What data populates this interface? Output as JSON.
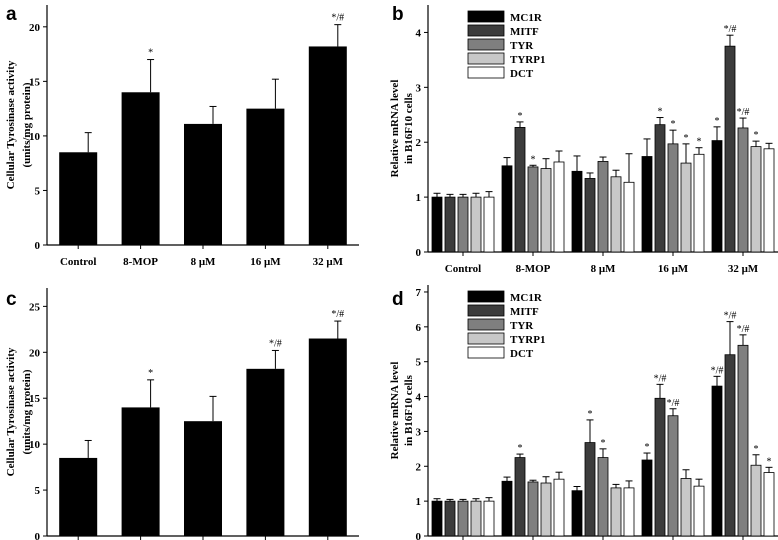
{
  "chart_data": [
    {
      "panel": "a",
      "type": "bar",
      "categories": [
        "Control",
        "8-MOP",
        "8 μM",
        "16 μM",
        "32 μM"
      ],
      "values": [
        8.5,
        14.0,
        11.1,
        12.5,
        18.2
      ],
      "errors": [
        1.8,
        3.0,
        1.6,
        2.7,
        2.0
      ],
      "annotations": [
        "",
        "*",
        "",
        "",
        "*/#"
      ],
      "ylabel": [
        "Cellular Tyrosinase activity",
        "(units/mg protein)"
      ],
      "ylim": [
        0,
        22
      ],
      "yticks": [
        0,
        5,
        10,
        15,
        20
      ]
    },
    {
      "panel": "b",
      "type": "bar",
      "categories": [
        "Control",
        "8-MOP",
        "8 μM",
        "16 μM",
        "32 μM"
      ],
      "ylabel": [
        "Relative mRNA level",
        "in B16F10 cells"
      ],
      "ylim": [
        0,
        4.5
      ],
      "yticks": [
        0,
        1,
        2,
        3,
        4
      ],
      "legend_position": "top-left",
      "series": [
        {
          "name": "MC1R",
          "color": "#000000",
          "values": [
            1.0,
            1.57,
            1.47,
            1.74,
            2.03
          ],
          "errors": [
            0.07,
            0.15,
            0.28,
            0.32,
            0.25
          ],
          "annotations": [
            "",
            "",
            "",
            "",
            "*"
          ]
        },
        {
          "name": "MITF",
          "color": "#3c3c3c",
          "values": [
            1.0,
            2.27,
            1.34,
            2.32,
            3.75
          ],
          "errors": [
            0.05,
            0.1,
            0.1,
            0.13,
            0.2
          ],
          "annotations": [
            "",
            "*",
            "",
            "*",
            "*/#"
          ]
        },
        {
          "name": "TYR",
          "color": "#7f7f7f",
          "values": [
            1.0,
            1.55,
            1.65,
            1.97,
            2.26
          ],
          "errors": [
            0.05,
            0.03,
            0.08,
            0.25,
            0.18
          ],
          "annotations": [
            "",
            "*",
            "",
            "*",
            "*/#"
          ]
        },
        {
          "name": "TYRP1",
          "color": "#c8c8c8",
          "values": [
            1.0,
            1.52,
            1.37,
            1.62,
            1.92
          ],
          "errors": [
            0.07,
            0.18,
            0.12,
            0.35,
            0.1
          ],
          "annotations": [
            "",
            "",
            "",
            "*",
            "*"
          ]
        },
        {
          "name": "DCT",
          "color": "#ffffff",
          "values": [
            1.0,
            1.64,
            1.27,
            1.78,
            1.88
          ],
          "errors": [
            0.1,
            0.2,
            0.52,
            0.12,
            0.1
          ],
          "annotations": [
            "",
            "",
            "",
            "*",
            ""
          ]
        }
      ]
    },
    {
      "panel": "c",
      "type": "bar",
      "categories": [
        "",
        "",
        "",
        "",
        ""
      ],
      "values": [
        8.5,
        14.0,
        12.5,
        18.2,
        21.5
      ],
      "errors": [
        1.9,
        3.0,
        2.7,
        2.0,
        1.9
      ],
      "annotations": [
        "",
        "*",
        "",
        "*/#",
        "*/#"
      ],
      "ylabel": [
        "Cellular Tyrosinase activity",
        "(units/mg protein)"
      ],
      "ylim": [
        0,
        27
      ],
      "yticks": [
        0,
        5,
        10,
        15,
        20,
        25
      ]
    },
    {
      "panel": "d",
      "type": "bar",
      "categories": [
        "",
        "",
        "",
        "",
        ""
      ],
      "ylabel": [
        "Relative mRNA level",
        "in B16F10 cells"
      ],
      "ylim": [
        0,
        7.2
      ],
      "yticks": [
        0,
        1,
        2,
        3,
        4,
        5,
        6,
        7
      ],
      "legend_position": "top-left",
      "series": [
        {
          "name": "MC1R",
          "color": "#000000",
          "values": [
            1.0,
            1.57,
            1.3,
            2.18,
            4.3
          ],
          "errors": [
            0.07,
            0.12,
            0.12,
            0.2,
            0.28
          ],
          "annotations": [
            "",
            "",
            "",
            "*",
            "*/#"
          ]
        },
        {
          "name": "MITF",
          "color": "#3c3c3c",
          "values": [
            1.0,
            2.25,
            2.68,
            3.95,
            5.2
          ],
          "errors": [
            0.05,
            0.1,
            0.65,
            0.4,
            0.95
          ],
          "annotations": [
            "",
            "*",
            "*",
            "*/#",
            "*/#"
          ]
        },
        {
          "name": "TYR",
          "color": "#7f7f7f",
          "values": [
            1.0,
            1.55,
            2.25,
            3.45,
            5.47
          ],
          "errors": [
            0.05,
            0.05,
            0.25,
            0.2,
            0.3
          ],
          "annotations": [
            "",
            "",
            "*",
            "*/#",
            "*/#"
          ]
        },
        {
          "name": "TYRP1",
          "color": "#c8c8c8",
          "values": [
            1.0,
            1.52,
            1.38,
            1.65,
            2.03
          ],
          "errors": [
            0.07,
            0.18,
            0.1,
            0.25,
            0.3
          ],
          "annotations": [
            "",
            "",
            "",
            "",
            "*"
          ]
        },
        {
          "name": "DCT",
          "color": "#ffffff",
          "values": [
            1.0,
            1.63,
            1.38,
            1.43,
            1.82
          ],
          "errors": [
            0.1,
            0.2,
            0.2,
            0.2,
            0.15
          ],
          "annotations": [
            "",
            "",
            "",
            "",
            "*"
          ]
        }
      ]
    }
  ]
}
